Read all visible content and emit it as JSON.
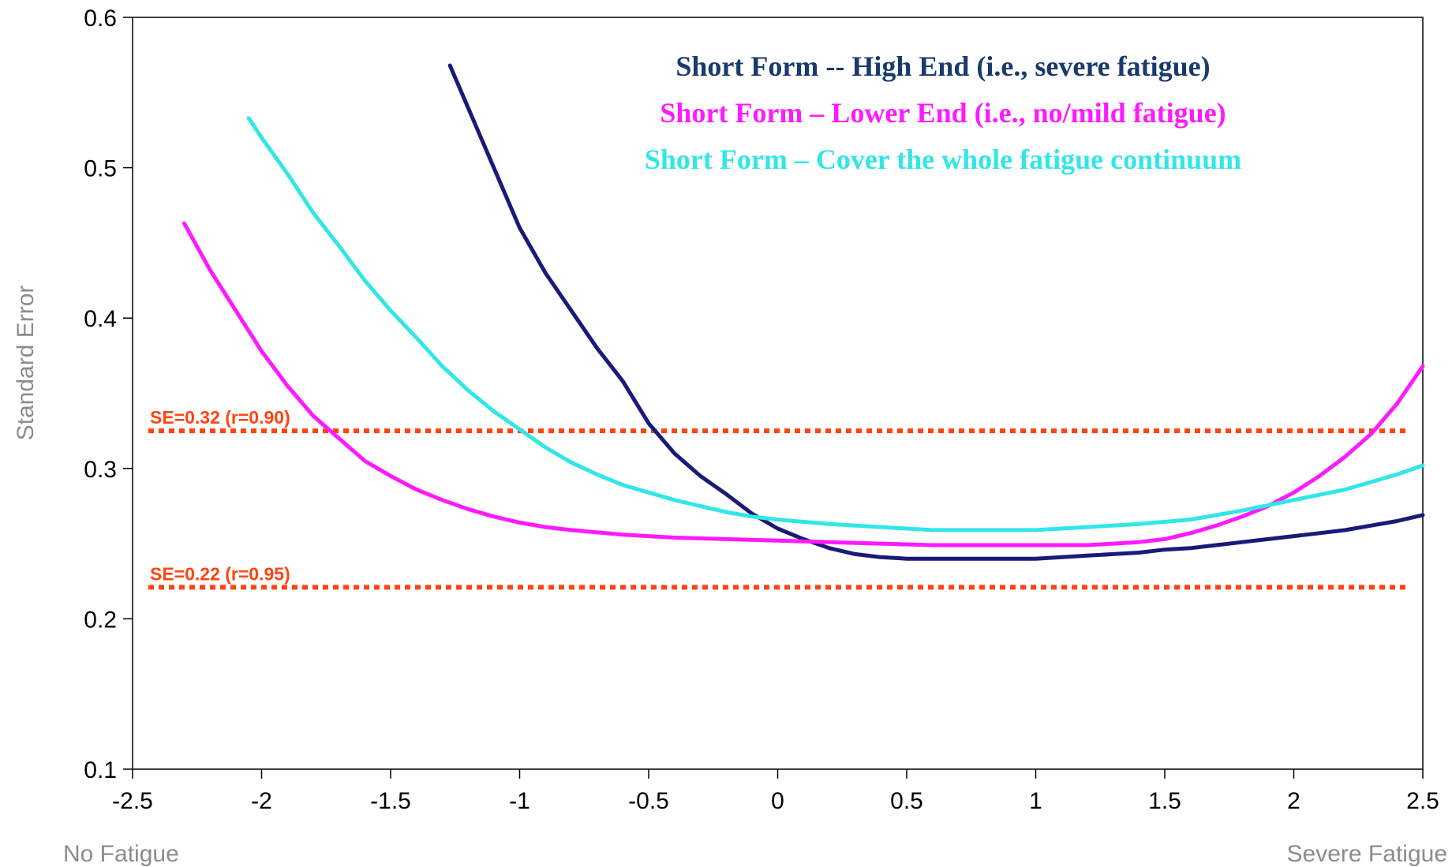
{
  "chart_data": {
    "type": "line",
    "title": "",
    "xlabel_left": "No Fatigue",
    "xlabel_right": "Severe Fatigue",
    "ylabel": "Standard Error",
    "xlim": [
      -2.5,
      2.5
    ],
    "ylim": [
      0.1,
      0.6
    ],
    "x_ticks": [
      -2.5,
      -2,
      -1.5,
      -1,
      -0.5,
      0,
      0.5,
      1,
      1.5,
      2,
      2.5
    ],
    "x_tick_labels": [
      "-2.5",
      "-2",
      "-1.5",
      "-1",
      "-0.5",
      "0",
      "0.5",
      "1",
      "1.5",
      "2",
      "2.5"
    ],
    "y_ticks": [
      0.1,
      0.2,
      0.3,
      0.4,
      0.5,
      0.6
    ],
    "y_tick_labels": [
      "0.1",
      "0.2",
      "0.3",
      "0.4",
      "0.5",
      "0.6"
    ],
    "grid": false,
    "legend_position": "top-right",
    "series": [
      {
        "name": "Short Form -- High End (i.e., severe fatigue)",
        "color": "#1a1a78",
        "x": [
          -1.27,
          -1.2,
          -1.1,
          -1.0,
          -0.9,
          -0.8,
          -0.7,
          -0.6,
          -0.5,
          -0.4,
          -0.3,
          -0.2,
          -0.1,
          0.0,
          0.1,
          0.2,
          0.3,
          0.4,
          0.5,
          0.6,
          0.7,
          0.8,
          0.9,
          1.0,
          1.1,
          1.2,
          1.3,
          1.4,
          1.5,
          1.6,
          1.7,
          1.8,
          1.9,
          2.0,
          2.1,
          2.2,
          2.3,
          2.4,
          2.5
        ],
        "y": [
          0.568,
          0.54,
          0.5,
          0.46,
          0.43,
          0.405,
          0.38,
          0.358,
          0.33,
          0.31,
          0.295,
          0.283,
          0.27,
          0.26,
          0.253,
          0.247,
          0.243,
          0.241,
          0.24,
          0.24,
          0.24,
          0.24,
          0.24,
          0.24,
          0.241,
          0.242,
          0.243,
          0.244,
          0.246,
          0.247,
          0.249,
          0.251,
          0.253,
          0.255,
          0.257,
          0.259,
          0.262,
          0.265,
          0.269
        ]
      },
      {
        "name": "Short Form – Lower End (i.e., no/mild fatigue)",
        "color": "#ff1aff",
        "x": [
          -2.3,
          -2.2,
          -2.1,
          -2.0,
          -1.9,
          -1.8,
          -1.7,
          -1.6,
          -1.5,
          -1.4,
          -1.3,
          -1.2,
          -1.1,
          -1.0,
          -0.9,
          -0.8,
          -0.6,
          -0.4,
          -0.2,
          0.0,
          0.2,
          0.4,
          0.6,
          0.8,
          1.0,
          1.2,
          1.4,
          1.5,
          1.6,
          1.7,
          1.8,
          1.9,
          2.0,
          2.1,
          2.2,
          2.3,
          2.4,
          2.5
        ],
        "y": [
          0.463,
          0.432,
          0.405,
          0.378,
          0.355,
          0.335,
          0.32,
          0.305,
          0.295,
          0.286,
          0.279,
          0.273,
          0.268,
          0.264,
          0.261,
          0.259,
          0.256,
          0.254,
          0.253,
          0.252,
          0.251,
          0.25,
          0.249,
          0.249,
          0.249,
          0.249,
          0.251,
          0.253,
          0.257,
          0.262,
          0.268,
          0.275,
          0.284,
          0.295,
          0.308,
          0.323,
          0.343,
          0.368
        ]
      },
      {
        "name": "Short Form – Cover the whole fatigue continuum",
        "color": "#33e6e6",
        "x": [
          -2.05,
          -2.0,
          -1.9,
          -1.8,
          -1.7,
          -1.6,
          -1.5,
          -1.4,
          -1.3,
          -1.2,
          -1.1,
          -1.0,
          -0.9,
          -0.8,
          -0.7,
          -0.6,
          -0.5,
          -0.4,
          -0.3,
          -0.2,
          -0.1,
          0.0,
          0.2,
          0.4,
          0.6,
          0.8,
          1.0,
          1.2,
          1.4,
          1.6,
          1.8,
          2.0,
          2.2,
          2.4,
          2.5
        ],
        "y": [
          0.533,
          0.52,
          0.496,
          0.47,
          0.448,
          0.425,
          0.405,
          0.387,
          0.368,
          0.352,
          0.338,
          0.326,
          0.314,
          0.304,
          0.296,
          0.289,
          0.284,
          0.279,
          0.275,
          0.271,
          0.268,
          0.266,
          0.263,
          0.261,
          0.259,
          0.259,
          0.259,
          0.261,
          0.263,
          0.266,
          0.272,
          0.279,
          0.286,
          0.296,
          0.302
        ]
      }
    ],
    "reference_lines": [
      {
        "y": 0.325,
        "label": "SE=0.32 (r=0.90)",
        "color": "#ff4411"
      },
      {
        "y": 0.221,
        "label": "SE=0.22 (r=0.95)",
        "color": "#ff4411"
      }
    ],
    "legend_text_colors": [
      "#1a3a6e",
      "#ff1aff",
      "#33e6e6"
    ]
  }
}
